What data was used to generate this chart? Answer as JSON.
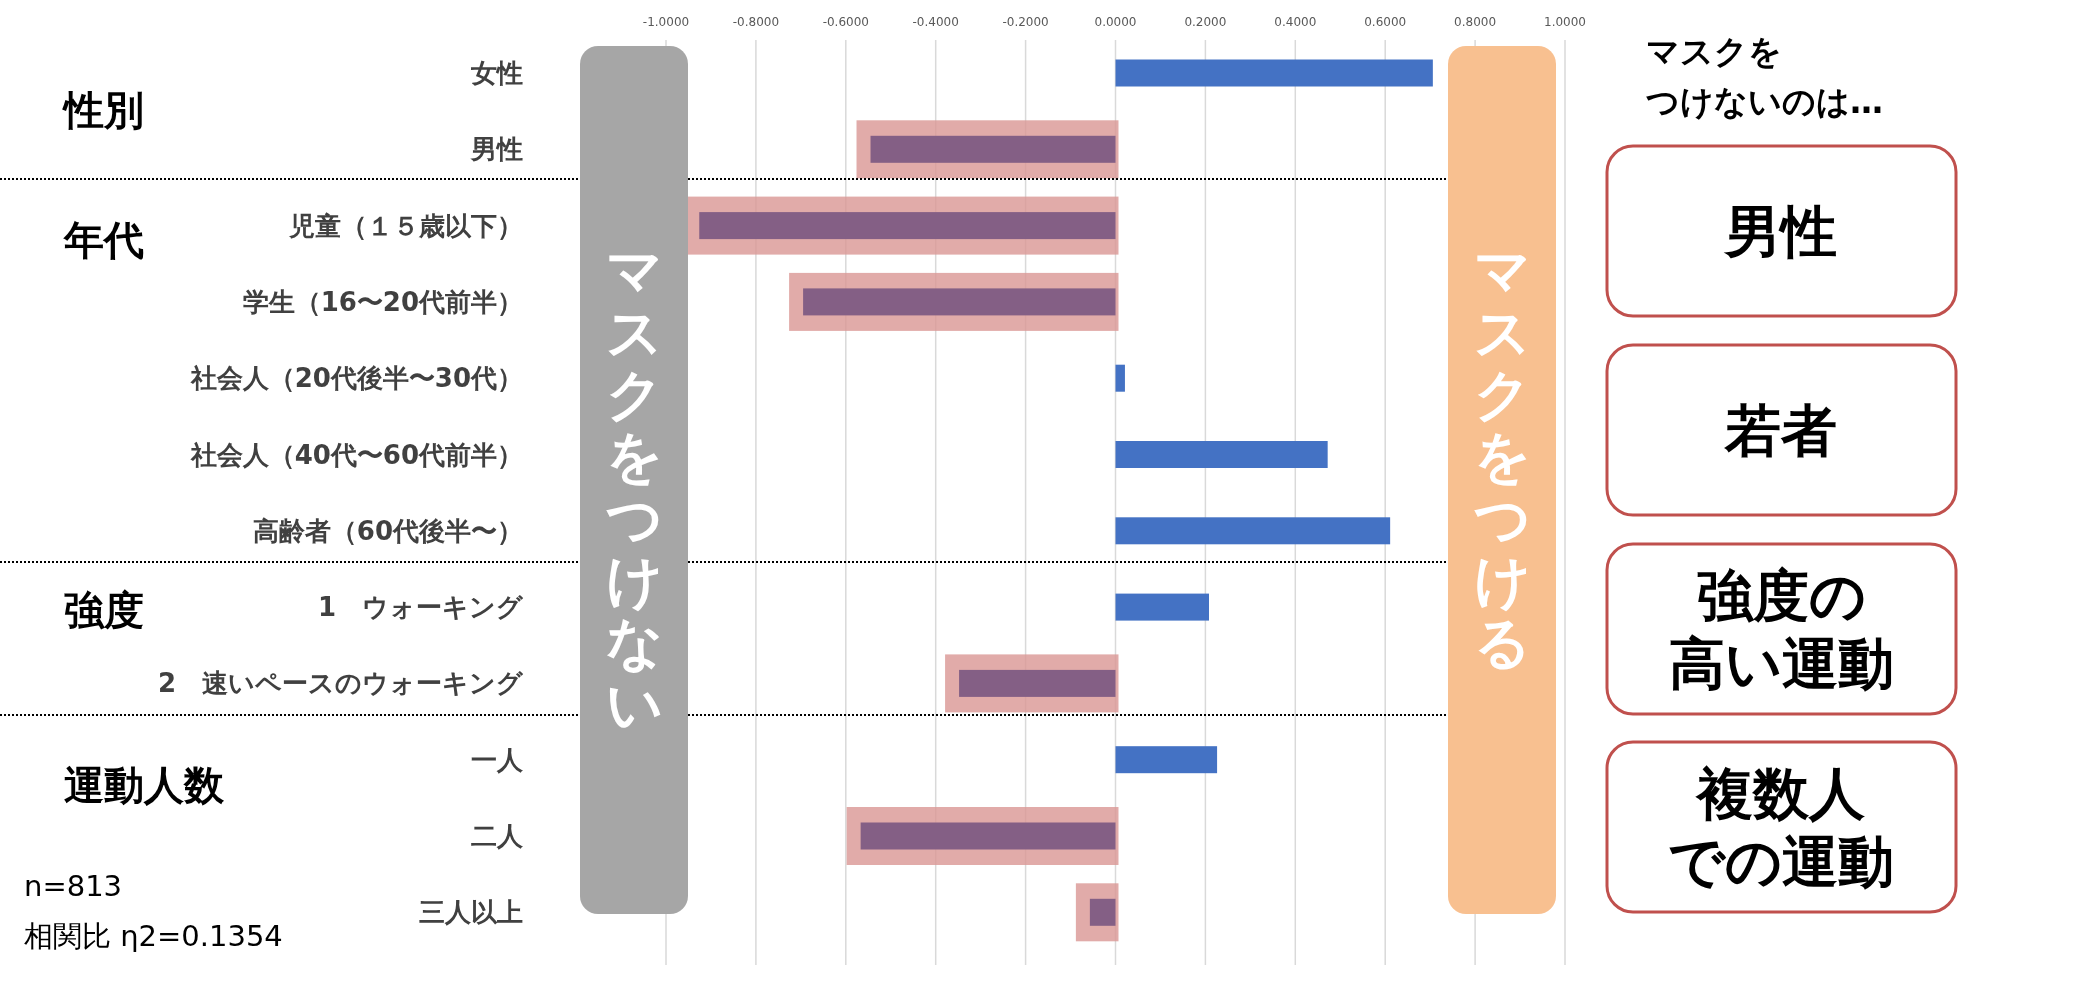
{
  "chart_data": {
    "type": "bar",
    "orientation": "horizontal",
    "categories": [
      "女性",
      "男性",
      "児童（１５歳以下）",
      "学生（16〜20代前半）",
      "社会人（20代後半〜30代）",
      "社会人（40代〜60代前半）",
      "高齢者（60代後半〜）",
      "1　ウォーキング",
      "2　速いペースのウォーキング",
      "一人",
      "二人",
      "三人以上"
    ],
    "values": [
      0.706,
      -0.545,
      -0.926,
      -0.695,
      0.021,
      0.472,
      0.611,
      0.208,
      -0.348,
      0.226,
      -0.567,
      -0.057
    ],
    "colors": [
      "#4472c4",
      "#845f85",
      "#845f85",
      "#845f85",
      "#4472c4",
      "#4472c4",
      "#4472c4",
      "#4472c4",
      "#845f85",
      "#4472c4",
      "#845f85",
      "#845f85"
    ],
    "xlim": [
      -1,
      1
    ],
    "xticks": [
      {
        "value": -1,
        "label": "-1.0000"
      },
      {
        "value": -0.8,
        "label": "-0.8000"
      },
      {
        "value": -0.6,
        "label": "-0.6000"
      },
      {
        "value": -0.4,
        "label": "-0.4000"
      },
      {
        "value": -0.2,
        "label": "-0.2000"
      },
      {
        "value": 0,
        "label": "0.0000"
      },
      {
        "value": 0.2,
        "label": "0.2000"
      },
      {
        "value": 0.4,
        "label": "0.4000"
      },
      {
        "value": 0.6,
        "label": "0.6000"
      },
      {
        "value": 0.8,
        "label": "0.8000"
      },
      {
        "value": 1,
        "label": "1.0000"
      }
    ],
    "grid": "x",
    "annotations": [
      "性別",
      "年代",
      "強度",
      "運動人数",
      "マスクをつけない",
      "マスクをつける",
      "マスクを",
      "つけないのは…",
      "男性",
      "若者",
      "強度の",
      "高い運動",
      "複数人",
      "での運動",
      "n=813",
      "相関比 η2=0.1354"
    ]
  }
}
